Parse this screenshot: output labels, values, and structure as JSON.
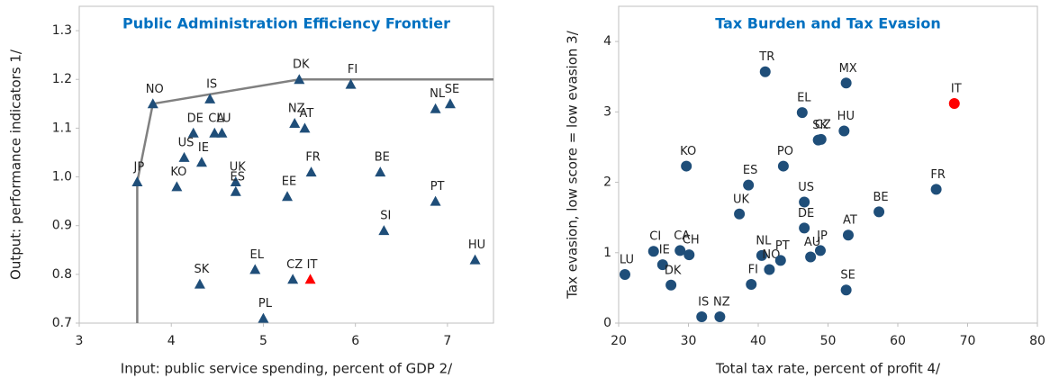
{
  "chart_data": [
    {
      "type": "scatter",
      "marker": "triangle",
      "title": "Public Administration Efficiency Frontier",
      "x_label": "Input: public service spending, percent of GDP 2/",
      "y_label": "Output: performance indicators 1/",
      "xlim": [
        3,
        7.5
      ],
      "xticks": [
        3,
        4,
        5,
        6,
        7
      ],
      "ylim": [
        0.7,
        1.35
      ],
      "yticks": [
        0.7,
        0.8,
        0.9,
        {
          "value": 1,
          "label": "1.0"
        },
        1.1,
        1.2,
        1.3
      ],
      "frontier": {
        "color": "#808080",
        "x": [
          3.63,
          3.63,
          3.8,
          5.39,
          7.5
        ],
        "values": [
          0.7,
          0.99,
          1.15,
          1.2,
          1.2
        ]
      },
      "series": [
        {
          "color": "#1f4e79",
          "labels": [
            "JP",
            "NO",
            "DK",
            "FI",
            "IS",
            "DE",
            "CA",
            "LU",
            "US",
            "IE",
            "KO",
            "UK",
            "ES",
            "EE",
            "FR",
            "NZ",
            "AT",
            "BE",
            "NL",
            "SE",
            "PT",
            "SI",
            "HU",
            "SK",
            "EL",
            "CZ",
            "PL"
          ],
          "x": [
            3.63,
            3.8,
            5.39,
            5.95,
            4.42,
            4.24,
            4.47,
            4.55,
            4.14,
            4.33,
            4.06,
            4.7,
            4.7,
            5.26,
            5.52,
            5.34,
            5.45,
            6.27,
            6.87,
            7.03,
            6.87,
            6.31,
            7.3,
            4.31,
            4.91,
            5.32,
            5.0
          ],
          "values": [
            0.99,
            1.15,
            1.2,
            1.19,
            1.16,
            1.09,
            1.09,
            1.09,
            1.04,
            1.03,
            0.98,
            0.99,
            0.97,
            0.96,
            1.01,
            1.11,
            1.1,
            1.01,
            1.14,
            1.15,
            0.95,
            0.89,
            0.83,
            0.78,
            0.81,
            0.79,
            0.71
          ]
        },
        {
          "color": "#ff0000",
          "labels": [
            "IT"
          ],
          "x": [
            5.51
          ],
          "values": [
            0.79
          ]
        }
      ]
    },
    {
      "type": "scatter",
      "marker": "circle",
      "title": "Tax Burden and Tax Evasion",
      "x_label": "Total tax rate, percent of profit 4/",
      "y_label": "Tax evasion, low score = low evasion 3/",
      "xlim": [
        20,
        80
      ],
      "xticks": [
        20,
        30,
        40,
        50,
        60,
        70,
        80
      ],
      "ylim": [
        0,
        4.5
      ],
      "yticks": [
        0,
        1,
        2,
        3,
        4
      ],
      "series": [
        {
          "color": "#1f4e79",
          "labels": [
            "LU",
            "CI",
            "IE",
            "CA",
            "CH",
            "DK",
            "IS",
            "NZ",
            "KO",
            "ES",
            "UK",
            "TR",
            "FI",
            "NL",
            "NO",
            "PT",
            "PO",
            "EL",
            "CZ",
            "SK",
            "HU",
            "MX",
            "US",
            "DE",
            "AU",
            "JP",
            "AT",
            "SE",
            "BE",
            "FR"
          ],
          "x": [
            20.9,
            25.0,
            26.3,
            28.8,
            30.1,
            27.5,
            31.9,
            34.5,
            29.7,
            38.6,
            37.3,
            41.0,
            39.0,
            40.5,
            41.6,
            43.2,
            43.6,
            46.3,
            49.0,
            48.6,
            52.3,
            52.6,
            46.6,
            46.6,
            47.5,
            48.9,
            52.9,
            52.6,
            57.3,
            65.5
          ],
          "values": [
            0.69,
            1.02,
            0.83,
            1.03,
            0.97,
            0.54,
            0.09,
            0.09,
            2.23,
            1.96,
            1.55,
            3.57,
            0.55,
            0.96,
            0.76,
            0.89,
            2.23,
            2.99,
            2.61,
            2.6,
            2.73,
            3.41,
            1.72,
            1.35,
            0.94,
            1.03,
            1.25,
            0.47,
            1.58,
            1.9
          ]
        },
        {
          "color": "#ff0000",
          "labels": [
            "IT"
          ],
          "x": [
            68.1
          ],
          "values": [
            3.12
          ]
        }
      ]
    }
  ]
}
